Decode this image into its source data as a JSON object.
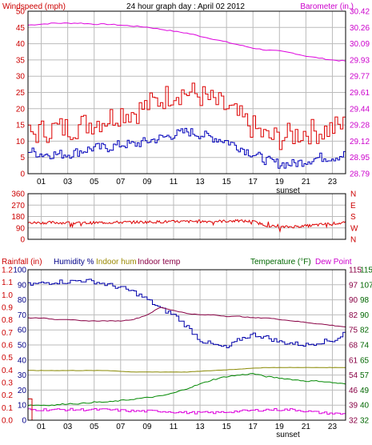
{
  "chart_data": [
    {
      "type": "line",
      "title": "24 hour graph day : April 02 2012",
      "left_axis_label": "Windspeed (mph)",
      "right_axis_label": "Barometer (in.)",
      "left_ticks": [
        "0",
        "5",
        "10",
        "15",
        "20",
        "25",
        "30",
        "35",
        "40",
        "45",
        "50"
      ],
      "right_ticks": [
        "28.79",
        "28.95",
        "29.12",
        "29.28",
        "29.44",
        "29.61",
        "29.77",
        "29.93",
        "30.09",
        "30.26",
        "30.42"
      ],
      "ylim_left": [
        0,
        50
      ],
      "ylim_right": [
        28.79,
        30.42
      ],
      "x_ticks": [
        "01",
        "03",
        "05",
        "07",
        "09",
        "11",
        "13",
        "15",
        "17",
        "19",
        "21",
        "23"
      ],
      "annotation": "sunset",
      "colors": {
        "gust": "#dd0000",
        "wind": "#0000bb",
        "barometer": "#dd00dd",
        "grid": "#bbbbbb",
        "left_axis": "#cc0000",
        "right_axis": "#cc00cc"
      },
      "series": [
        {
          "key": "gust",
          "x": [
            0,
            1,
            2,
            3,
            4,
            5,
            6,
            7,
            8,
            9,
            10,
            11,
            12,
            13,
            14,
            15,
            16,
            17,
            18,
            19,
            20,
            21,
            22,
            23,
            24
          ],
          "values": [
            12,
            13,
            14,
            14,
            15,
            16,
            17,
            19,
            19,
            21,
            23,
            25,
            25,
            24,
            22,
            20,
            17,
            14,
            11,
            11,
            12,
            13,
            13,
            14,
            15
          ]
        },
        {
          "key": "wind",
          "x": [
            0,
            1,
            2,
            3,
            4,
            5,
            6,
            7,
            8,
            9,
            10,
            11,
            12,
            13,
            14,
            15,
            16,
            17,
            18,
            19,
            20,
            21,
            22,
            23,
            24
          ],
          "values": [
            7,
            6,
            6,
            6,
            7,
            8,
            8,
            9,
            9,
            10,
            11,
            12,
            13,
            12,
            11,
            10,
            8,
            6,
            4,
            3,
            3,
            4,
            5,
            5,
            6
          ]
        },
        {
          "key": "barometer",
          "x": [
            0,
            1,
            2,
            3,
            4,
            5,
            6,
            7,
            8,
            9,
            10,
            11,
            12,
            13,
            14,
            15,
            16,
            17,
            18,
            19,
            20,
            21,
            22,
            23,
            24
          ],
          "values": [
            30.28,
            30.29,
            30.3,
            30.3,
            30.3,
            30.29,
            30.29,
            30.28,
            30.27,
            30.26,
            30.24,
            30.22,
            30.2,
            30.17,
            30.14,
            30.11,
            30.08,
            30.05,
            30.03,
            30.02,
            30.0,
            29.97,
            29.95,
            29.93,
            29.92
          ]
        }
      ]
    },
    {
      "type": "scatter",
      "right_letters": [
        "N",
        "W",
        "S",
        "E",
        "N"
      ],
      "left_ticks": [
        "0",
        "90",
        "180",
        "270",
        "360"
      ],
      "ylim": [
        0,
        360
      ],
      "colors": {
        "direction": "#dd0000"
      },
      "series": [
        {
          "key": "direction",
          "x": [
            0,
            2,
            4,
            6,
            8,
            10,
            12,
            14,
            16,
            17,
            18,
            19,
            20,
            21,
            22,
            23,
            24
          ],
          "values": [
            130,
            132,
            128,
            133,
            135,
            138,
            140,
            142,
            145,
            140,
            110,
            95,
            100,
            105,
            115,
            125,
            130
          ]
        }
      ]
    },
    {
      "type": "line",
      "labels": {
        "rainfall": "Rainfall (in)",
        "humidity": "Humidity %",
        "indoor_hum": "Indoor hum",
        "indoor_temp": "Indoor temp",
        "temperature": "Temperature (°F)",
        "dew_point": "Dew Point"
      },
      "left_ticks_rain": [
        "0.0",
        "0.1",
        "0.2",
        "0.3",
        "0.4",
        "0.5",
        "0.6",
        "0.7",
        "0.8",
        "0.9",
        "1.0",
        "1.1",
        "1.2"
      ],
      "left_ticks_humidity": [
        "0",
        "10",
        "20",
        "30",
        "40",
        "50",
        "60",
        "70",
        "80",
        "90",
        "100"
      ],
      "right_ticks_temp_a": [
        "32",
        "39",
        "46",
        "54",
        "61",
        "68",
        "75",
        "82",
        "90",
        "97",
        "115"
      ],
      "right_ticks_temp_b": [
        "32",
        "40",
        "49",
        "57",
        "65",
        "74",
        "82",
        "90",
        "98",
        "107",
        "115"
      ],
      "x_ticks": [
        "01",
        "03",
        "05",
        "07",
        "09",
        "11",
        "13",
        "15",
        "17",
        "19",
        "21",
        "23"
      ],
      "annotation": "sunset",
      "ylim_humidity": [
        0,
        100
      ],
      "colors": {
        "rainfall": "#cc0000",
        "humidity": "#0000aa",
        "indoor_hum": "#888800",
        "indoor_temp": "#880044",
        "temperature": "#008800",
        "dew_point": "#dd00dd",
        "humidity_label": "#000088",
        "indoor_hum_label": "#998800",
        "indoor_temp_label": "#880044",
        "temperature_label": "#006600",
        "dew_point_label": "#cc00cc"
      },
      "series": [
        {
          "key": "humidity",
          "x": [
            0,
            1,
            2,
            3,
            4,
            5,
            6,
            7,
            8,
            9,
            10,
            11,
            12,
            13,
            14,
            15,
            16,
            17,
            18,
            19,
            20,
            21,
            22,
            23,
            23.5,
            24
          ],
          "values": [
            90,
            91,
            92,
            92,
            93,
            92,
            90,
            88,
            85,
            80,
            74,
            70,
            62,
            53,
            50,
            48,
            54,
            57,
            55,
            52,
            51,
            50,
            52,
            53,
            55,
            60
          ]
        },
        {
          "key": "indoor_temp",
          "x": [
            0,
            1,
            2,
            3,
            4,
            5,
            6,
            7,
            8,
            9,
            10,
            11,
            12,
            13,
            14,
            15,
            16,
            17,
            18,
            19,
            20,
            21,
            22,
            23,
            24
          ],
          "values": [
            68,
            68,
            67,
            67,
            66,
            66,
            66,
            66,
            67,
            70,
            75,
            73,
            71,
            70,
            70,
            69,
            69,
            68,
            68,
            67,
            66,
            65,
            64,
            63,
            62
          ]
        },
        {
          "key": "indoor_hum",
          "x": [
            0,
            2,
            4,
            6,
            8,
            10,
            12,
            14,
            16,
            18,
            20,
            22,
            24
          ],
          "values": [
            33,
            33,
            33,
            33,
            32,
            32,
            32,
            33,
            34,
            35,
            35,
            35,
            35
          ]
        },
        {
          "key": "temperature",
          "x": [
            0,
            1,
            2,
            3,
            4,
            5,
            6,
            7,
            8,
            9,
            10,
            11,
            12,
            13,
            14,
            15,
            16,
            17,
            18,
            19,
            20,
            21,
            22,
            23,
            24
          ],
          "values": [
            10,
            10,
            10,
            11,
            11,
            12,
            12,
            13,
            14,
            15,
            16,
            18,
            21,
            24,
            27,
            29,
            30,
            31,
            29,
            28,
            27,
            26,
            26,
            25,
            24
          ]
        },
        {
          "key": "dew_point",
          "x": [
            0,
            2,
            4,
            6,
            8,
            10,
            12,
            14,
            16,
            18,
            20,
            22,
            24
          ],
          "values": [
            7,
            7,
            7,
            7,
            6,
            6,
            5,
            5,
            6,
            7,
            7,
            5,
            4
          ]
        },
        {
          "key": "rainfall",
          "x": [
            0,
            0,
            0.3,
            0.3,
            24
          ],
          "values": [
            0,
            0.17,
            0.17,
            0,
            0
          ]
        }
      ]
    }
  ]
}
